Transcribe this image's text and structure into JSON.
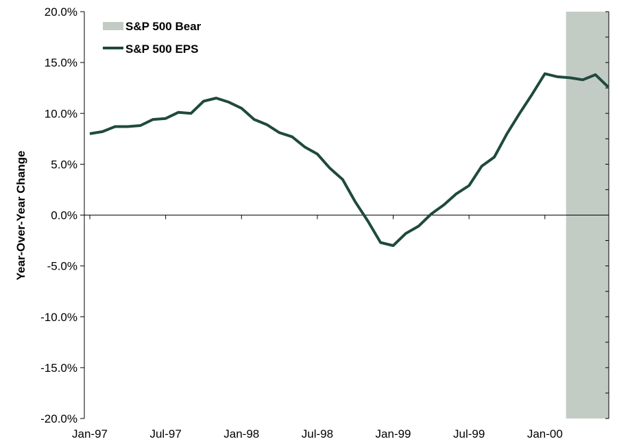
{
  "chart_data": {
    "type": "line",
    "ylabel": "Year-Over-Year Change",
    "xlabel": "",
    "ylim": [
      -20,
      20
    ],
    "y_ticks": [
      20,
      15,
      10,
      5,
      0,
      -5,
      -10,
      -15,
      -20
    ],
    "y_tick_labels": [
      "20.0%",
      "15.0%",
      "10.0%",
      "5.0%",
      "0.0%",
      "-5.0%",
      "-10.0%",
      "-15.0%",
      "-20.0%"
    ],
    "x_tick_labels": [
      "Jan-97",
      "Jul-97",
      "Jan-98",
      "Jul-98",
      "Jan-99",
      "Jul-99",
      "Jan-00"
    ],
    "x_range": [
      "Jan-97",
      "Jun-00"
    ],
    "legend": {
      "position": "top-left",
      "entries": [
        {
          "label": "S&P 500 Bear",
          "kind": "area",
          "color": "#c3cbc5"
        },
        {
          "label": "S&P 500 EPS",
          "kind": "line",
          "color": "#1f4a3d"
        }
      ]
    },
    "shaded_regions": [
      {
        "name": "S&P 500 Bear",
        "start": "Mar-00",
        "end": "Jun-00"
      }
    ],
    "series": [
      {
        "name": "S&P 500 EPS",
        "color": "#1f4a3d",
        "x": [
          "Jan-97",
          "Feb-97",
          "Mar-97",
          "Apr-97",
          "May-97",
          "Jun-97",
          "Jul-97",
          "Aug-97",
          "Sep-97",
          "Oct-97",
          "Nov-97",
          "Dec-97",
          "Jan-98",
          "Feb-98",
          "Mar-98",
          "Apr-98",
          "May-98",
          "Jun-98",
          "Jul-98",
          "Aug-98",
          "Sep-98",
          "Oct-98",
          "Nov-98",
          "Dec-98",
          "Jan-99",
          "Feb-99",
          "Mar-99",
          "Apr-99",
          "May-99",
          "Jun-99",
          "Jul-99",
          "Aug-99",
          "Sep-99",
          "Oct-99",
          "Nov-99",
          "Dec-99",
          "Jan-00",
          "Feb-00",
          "Mar-00",
          "Apr-00",
          "May-00",
          "Jun-00"
        ],
        "values": [
          8.0,
          8.2,
          8.7,
          8.7,
          8.8,
          9.4,
          9.5,
          10.1,
          10.0,
          11.2,
          11.5,
          11.1,
          10.5,
          9.4,
          8.9,
          8.1,
          7.7,
          6.7,
          6.0,
          4.6,
          3.5,
          1.3,
          -0.6,
          -2.7,
          -3.0,
          -1.8,
          -1.1,
          0.1,
          1.0,
          2.1,
          2.9,
          4.8,
          5.7,
          8.0,
          10.0,
          11.9,
          13.9,
          13.6,
          13.5,
          13.3,
          13.8,
          12.6
        ]
      }
    ]
  }
}
